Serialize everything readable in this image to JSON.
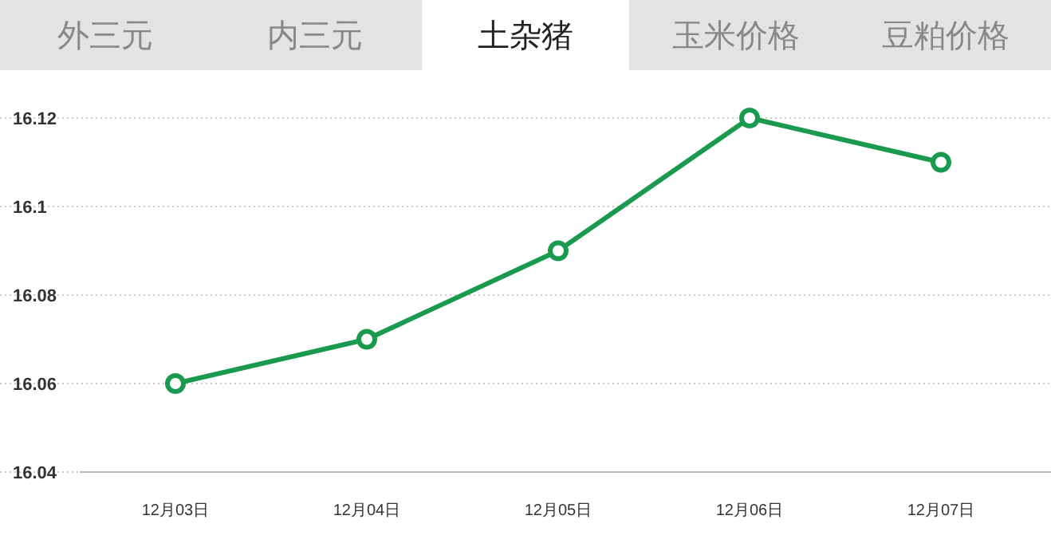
{
  "chart_data": {
    "type": "line",
    "title": "土杂猪",
    "annotations": [
      "外三元",
      "内三元",
      "玉米价格",
      "豆粕价格"
    ],
    "categories": [
      "12月03日",
      "12月04日",
      "12月05日",
      "12月06日",
      "12月07日"
    ],
    "series": [
      {
        "color": "#1a9a4e",
        "values": [
          16.06,
          16.07,
          16.09,
          16.12,
          16.11
        ]
      }
    ],
    "ylim": [
      16.04,
      16.12
    ],
    "yticks": [
      16.04,
      16.06,
      16.08,
      16.1,
      16.12
    ],
    "grid": "y",
    "marker": "circle"
  }
}
